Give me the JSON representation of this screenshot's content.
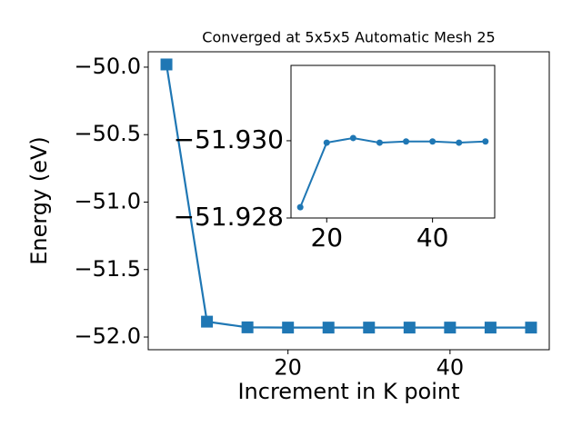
{
  "chart_data": [
    {
      "type": "line",
      "title": "Converged at 5x5x5 Automatic Mesh 25",
      "x_label": "Increment in K point",
      "y_label": "Energy (eV)",
      "x": [
        5,
        10,
        15,
        20,
        25,
        30,
        35,
        40,
        45,
        50
      ],
      "series": [
        {
          "color": "#1f77b4",
          "marker": "square",
          "values": [
            -49.98,
            -51.886,
            -51.92828,
            -51.92995,
            -51.93007,
            -51.92995,
            -51.92998,
            -51.92998,
            -51.92995,
            -51.92998
          ]
        }
      ],
      "xlim": [
        2.75,
        52.25
      ],
      "xticks": [
        20,
        40
      ],
      "ylim": [
        -52.094,
        -49.886
      ],
      "yticks": [
        {
          "value": -52.0,
          "label": "−52.0"
        },
        {
          "value": -51.5,
          "label": "−51.5"
        },
        {
          "value": -51.0,
          "label": "−51.0"
        },
        {
          "value": -50.5,
          "label": "−50.5"
        },
        {
          "value": -50.0,
          "label": "−50.0"
        }
      ]
    },
    {
      "type": "line",
      "x": [
        15,
        20,
        25,
        30,
        35,
        40,
        45,
        50
      ],
      "series": [
        {
          "color": "#1f77b4",
          "marker": "circle",
          "values": [
            -51.92828,
            -51.92995,
            -51.93007,
            -51.92995,
            -51.92998,
            -51.92998,
            -51.92995,
            -51.92998
          ]
        }
      ],
      "xlim": [
        13.25,
        51.75
      ],
      "xticks": [
        20,
        40
      ],
      "ylim": [
        -51.928,
        -51.93195
      ],
      "yticks": [
        {
          "value": -51.928,
          "label": "−51.928"
        },
        {
          "value": -51.93,
          "label": "−51.930"
        }
      ]
    }
  ]
}
